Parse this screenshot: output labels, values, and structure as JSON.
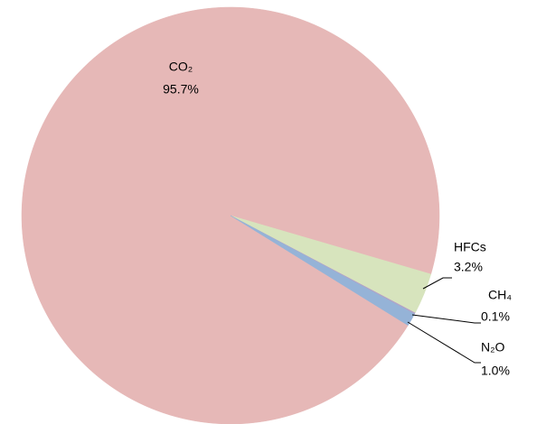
{
  "chart_data": {
    "type": "pie",
    "categories": [
      "CO₂",
      "HFCs",
      "CH₄",
      "N₂O"
    ],
    "values": [
      95.7,
      3.2,
      0.1,
      1.0
    ],
    "value_labels": [
      "95.7%",
      "3.2%",
      "0.1%",
      "1.0%"
    ],
    "colors": [
      "#e6b8b7",
      "#d7e4bd",
      "#b3a2c7",
      "#95b3d7"
    ]
  }
}
